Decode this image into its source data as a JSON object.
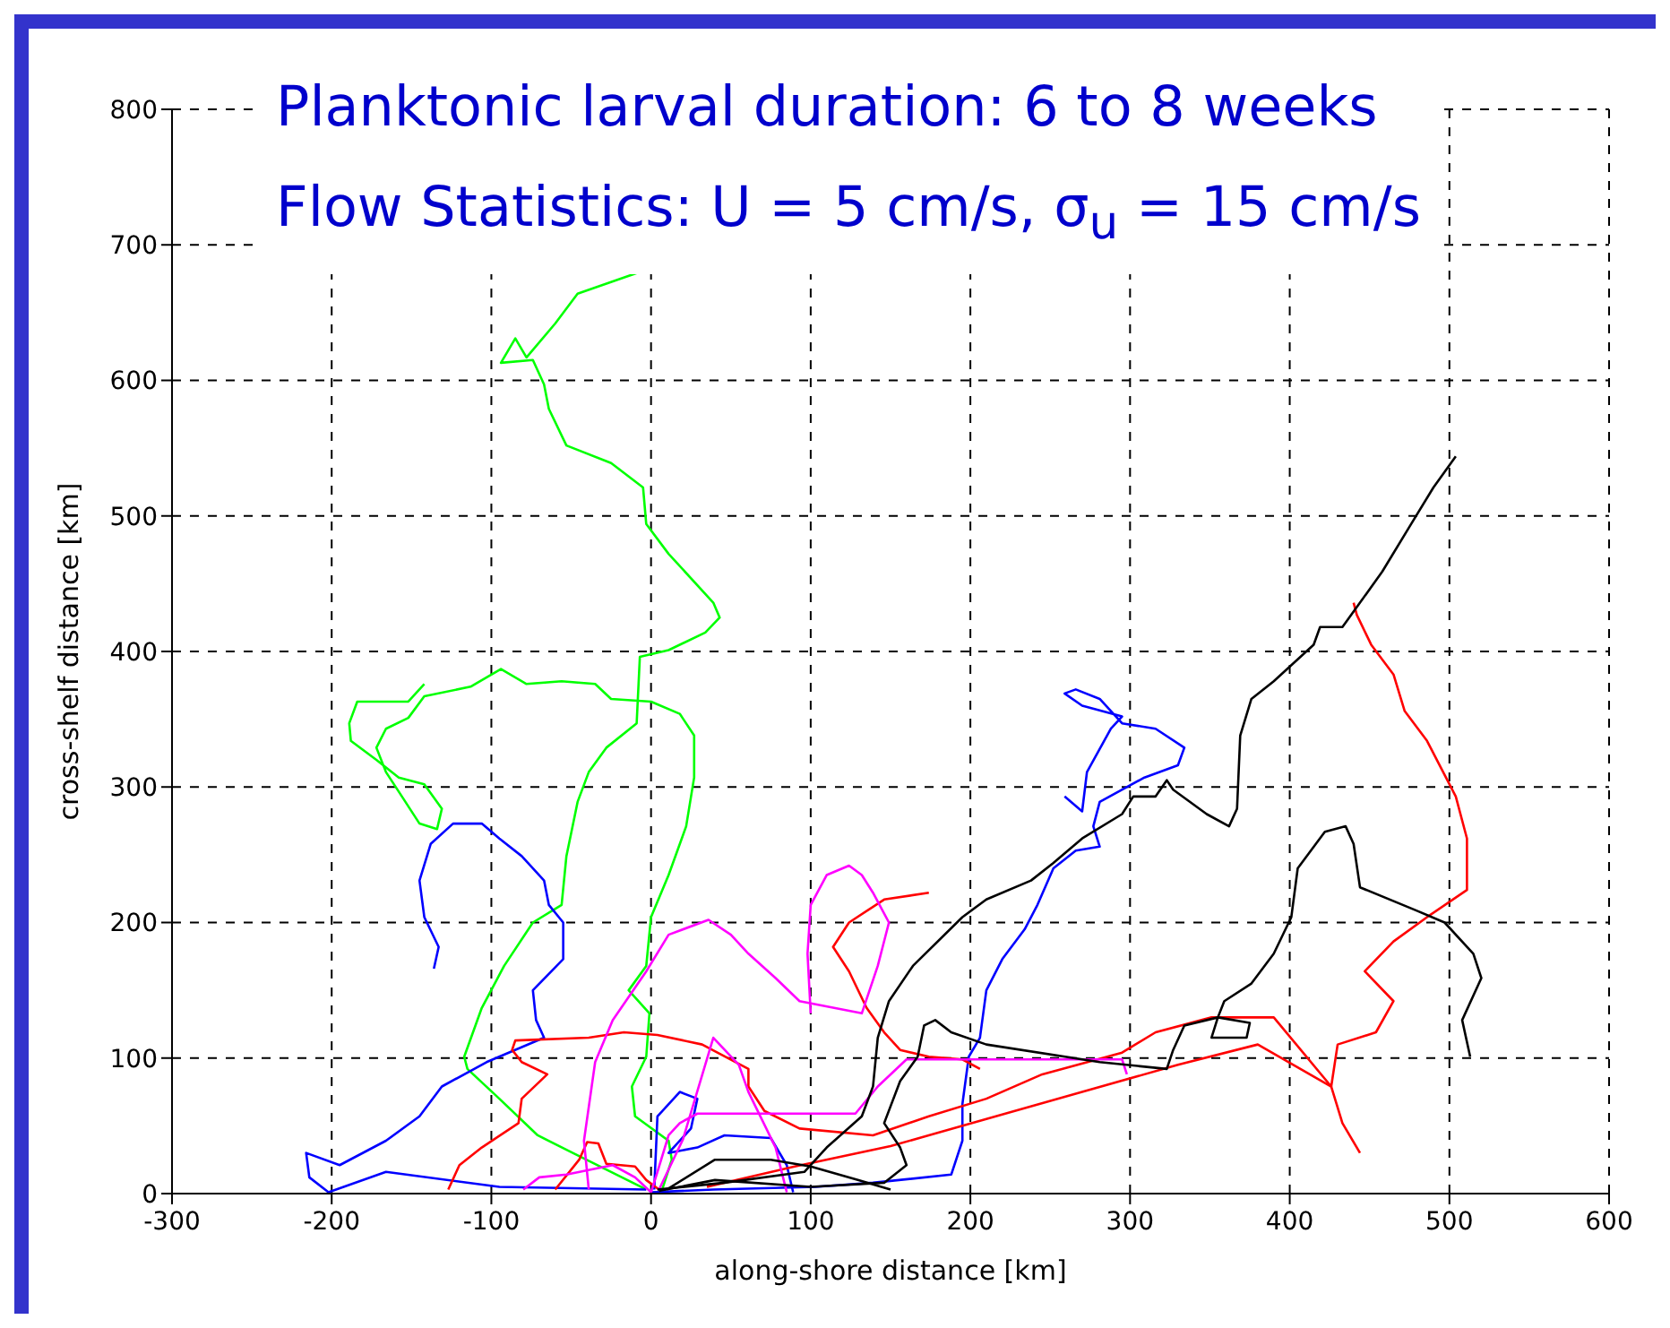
{
  "chart_data": {
    "type": "line",
    "title": "Planktonic larval duration: 6 to 8 weeks",
    "subtitle": "Flow Statistics: U = 5 cm/s,  σ$_{u}$ = 15 cm/s",
    "xlabel": "along-shore distance [km]",
    "ylabel": "cross-shelf distance [km]",
    "xlim": [
      -300,
      600
    ],
    "ylim": [
      0,
      800
    ],
    "xticks": [
      -300,
      -200,
      -100,
      0,
      100,
      200,
      300,
      400,
      500,
      600
    ],
    "yticks": [
      0,
      100,
      200,
      300,
      400,
      500,
      600,
      700,
      800
    ],
    "grid": true,
    "line_style": "solid",
    "series": [
      {
        "color": "#00ff00",
        "x": [
          -7,
          -46,
          -60,
          -78,
          -85,
          -94,
          -74,
          -67,
          -64,
          -53,
          -25,
          -5,
          -3,
          11,
          39,
          43,
          34,
          11,
          -7,
          -9,
          -28,
          -39,
          -46,
          -53,
          -56,
          -74,
          -92,
          -106,
          -117,
          -115,
          -95,
          -71,
          -49,
          -25,
          -3
        ],
        "values": [
          680,
          664,
          642,
          617,
          631,
          613,
          615,
          597,
          579,
          552,
          539,
          521,
          494,
          472,
          436,
          425,
          414,
          401,
          396,
          347,
          329,
          311,
          289,
          249,
          213,
          200,
          168,
          137,
          101,
          92,
          70,
          43,
          30,
          16,
          3
        ]
      },
      {
        "color": "#00ff00",
        "x": [
          -142,
          -152,
          -184,
          -189,
          -188,
          -172,
          -158,
          -142,
          -131,
          -134,
          -145,
          -156,
          -166,
          -172,
          -166,
          -152,
          -142,
          -113,
          -94,
          -78,
          -56,
          -35,
          -25,
          0,
          18,
          27,
          27,
          22,
          11,
          0,
          -3,
          -14,
          -1,
          -3,
          -12,
          -10,
          11,
          13,
          7
        ],
        "values": [
          376,
          363,
          363,
          347,
          334,
          320,
          307,
          302,
          284,
          269,
          273,
          293,
          311,
          329,
          343,
          351,
          367,
          374,
          387,
          376,
          378,
          376,
          365,
          363,
          354,
          338,
          307,
          271,
          235,
          204,
          168,
          150,
          133,
          101,
          79,
          57,
          39,
          25,
          3
        ]
      },
      {
        "color": "#0000ff",
        "x": [
          -136,
          -133,
          -142,
          -145,
          -138,
          -124,
          -106,
          -95,
          -81,
          -67,
          -64,
          -55,
          -55,
          -74,
          -72,
          -67,
          -103,
          -131,
          -145,
          -166,
          -195,
          -216,
          -214,
          -202,
          -166,
          -95,
          -3
        ],
        "values": [
          166,
          182,
          204,
          231,
          258,
          273,
          273,
          262,
          249,
          231,
          213,
          200,
          173,
          150,
          128,
          115,
          97,
          79,
          57,
          39,
          21,
          30,
          12,
          1,
          16,
          5,
          3
        ]
      },
      {
        "color": "#0000ff",
        "x": [
          259,
          270,
          273,
          288,
          295,
          270,
          259,
          266,
          281,
          295,
          316,
          334,
          330,
          309,
          281,
          277,
          281,
          266,
          252,
          242,
          234,
          220,
          210,
          206,
          199,
          195,
          195,
          188,
          139,
          103,
          39,
          0
        ],
        "values": [
          293,
          282,
          311,
          343,
          352,
          360,
          369,
          372,
          365,
          347,
          343,
          329,
          316,
          307,
          289,
          271,
          256,
          253,
          240,
          213,
          195,
          173,
          150,
          115,
          101,
          66,
          39,
          14,
          8,
          5,
          3,
          1
        ]
      },
      {
        "color": "#0000ff",
        "x": [
          2,
          4,
          18,
          29,
          25,
          11,
          29,
          46,
          75,
          85,
          89
        ],
        "values": [
          3,
          57,
          75,
          70,
          48,
          30,
          34,
          43,
          41,
          21,
          1
        ]
      },
      {
        "color": "#ff0000",
        "x": [
          -127,
          -120,
          -106,
          -83,
          -81,
          -65,
          -81,
          -87,
          -85,
          -39,
          -17,
          4,
          32,
          61,
          61,
          71,
          93,
          139,
          174,
          210,
          245,
          295,
          316,
          351,
          390,
          426,
          433,
          444
        ],
        "values": [
          3,
          21,
          34,
          52,
          70,
          88,
          97,
          106,
          113,
          115,
          119,
          117,
          110,
          92,
          79,
          61,
          48,
          43,
          57,
          70,
          88,
          104,
          119,
          130,
          130,
          79,
          52,
          30
        ]
      },
      {
        "color": "#ff0000",
        "x": [
          35,
          90,
          150,
          210,
          270,
          330,
          380,
          426,
          430,
          454,
          465,
          447,
          465,
          486,
          511,
          511,
          504,
          486,
          472,
          465,
          451,
          442,
          440
        ],
        "values": [
          5,
          20,
          35,
          55,
          75,
          95,
          110,
          79,
          110,
          119,
          142,
          164,
          186,
          204,
          224,
          262,
          293,
          334,
          356,
          383,
          405,
          427,
          436
        ]
      },
      {
        "color": "#ff0000",
        "x": [
          174,
          146,
          124,
          114,
          124,
          135,
          146,
          156,
          174,
          195,
          206
        ],
        "values": [
          222,
          217,
          200,
          182,
          164,
          137,
          119,
          106,
          101,
          99,
          92
        ]
      },
      {
        "color": "#ff0000",
        "x": [
          -60,
          -45,
          -40,
          -33,
          -28,
          -10,
          -3,
          5
        ],
        "values": [
          3,
          25,
          38,
          37,
          22,
          20,
          10,
          3
        ]
      },
      {
        "color": "#ff00ff",
        "x": [
          -39,
          -42,
          -35,
          -24,
          -3,
          11,
          36,
          50,
          61,
          78,
          93,
          132,
          142,
          149,
          139,
          132,
          124,
          110,
          100,
          98,
          100
        ],
        "values": [
          3,
          39,
          97,
          128,
          164,
          191,
          202,
          191,
          177,
          159,
          142,
          133,
          168,
          200,
          222,
          235,
          242,
          235,
          213,
          177,
          133
        ]
      },
      {
        "color": "#ff00ff",
        "x": [
          0,
          4,
          11,
          18,
          29,
          82,
          128,
          142,
          160,
          295,
          298
        ],
        "values": [
          1,
          16,
          43,
          52,
          59,
          59,
          59,
          79,
          99,
          99,
          88
        ]
      },
      {
        "color": "#ff00ff",
        "x": [
          0,
          -10,
          -24,
          -53,
          -70,
          -80
        ],
        "values": [
          1,
          12,
          21,
          14,
          12,
          3
        ]
      },
      {
        "color": "#ff00ff",
        "x": [
          5,
          20,
          39,
          55,
          61,
          78,
          85
        ],
        "values": [
          3,
          40,
          115,
          95,
          75,
          34,
          1
        ]
      },
      {
        "color": "#000000",
        "x": [
          4,
          46,
          96,
          110,
          132,
          139,
          142,
          149,
          164,
          195,
          210,
          238,
          252,
          270,
          295,
          302,
          316,
          323,
          327,
          348,
          362,
          367,
          369,
          376,
          390,
          415,
          419,
          433,
          444,
          458,
          476,
          490,
          504
        ],
        "values": [
          3,
          8,
          16,
          34,
          57,
          79,
          115,
          142,
          168,
          204,
          217,
          231,
          244,
          262,
          280,
          293,
          293,
          305,
          298,
          280,
          271,
          284,
          338,
          365,
          378,
          405,
          418,
          418,
          436,
          459,
          494,
          521,
          544
        ]
      },
      {
        "color": "#000000",
        "x": [
          5,
          40,
          100,
          146,
          160,
          156,
          146,
          156,
          167,
          171,
          178,
          188,
          210,
          281,
          323,
          327,
          334,
          355,
          375,
          373,
          351,
          355,
          359,
          376,
          390,
          401,
          405,
          422,
          435,
          440,
          444,
          479,
          497,
          515,
          520,
          508,
          513
        ],
        "values": [
          2,
          10,
          5,
          8,
          21,
          34,
          52,
          83,
          101,
          124,
          128,
          119,
          110,
          97,
          92,
          106,
          124,
          130,
          126,
          115,
          115,
          130,
          142,
          155,
          177,
          204,
          240,
          267,
          271,
          258,
          226,
          209,
          200,
          177,
          159,
          128,
          101
        ]
      },
      {
        "color": "#000000",
        "x": [
          10,
          40,
          75,
          100,
          130,
          150
        ],
        "values": [
          3,
          25,
          25,
          20,
          10,
          3
        ]
      }
    ]
  }
}
